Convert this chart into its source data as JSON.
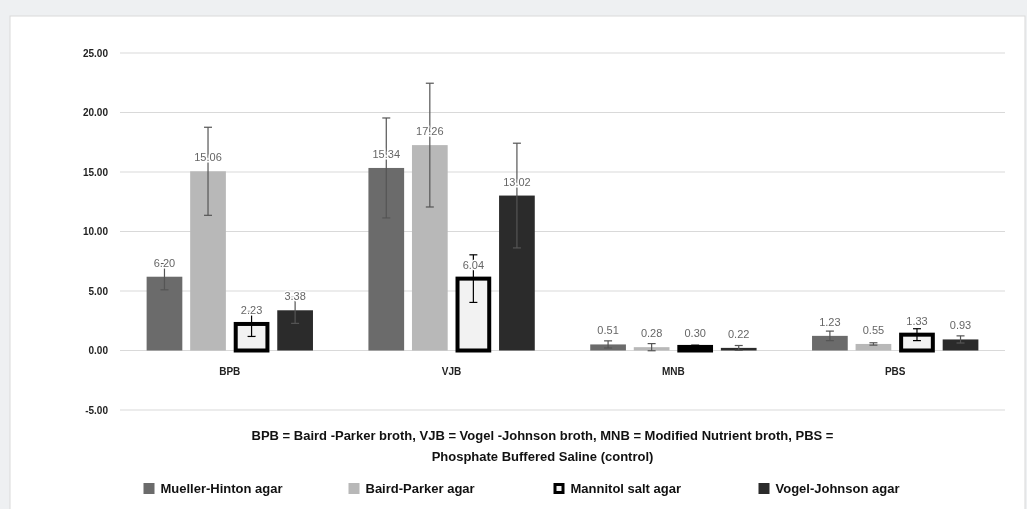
{
  "chart_data": {
    "type": "bar",
    "categories": [
      "BPB",
      "VJB",
      "MNB",
      "PBS"
    ],
    "series": [
      {
        "name": "Mueller-Hinton agar",
        "color": "#6b6b6b",
        "values": [
          6.2,
          15.34,
          0.51,
          1.23
        ],
        "errors": [
          1.1,
          4.2,
          0.3,
          0.4
        ],
        "value_labels": [
          "6.20",
          "15.34",
          "0.51",
          "1.23"
        ]
      },
      {
        "name": "Baird-Parker agar",
        "color": "#b8b8b8",
        "values": [
          15.06,
          17.26,
          0.28,
          0.55
        ],
        "errors": [
          3.7,
          5.2,
          0.3,
          0.1
        ],
        "value_labels": [
          "15.06",
          "17.26",
          "0.28",
          "0.55"
        ]
      },
      {
        "name": "Mannitol salt agar",
        "color": "#f2f2f2",
        "values": [
          2.23,
          6.04,
          0.3,
          1.33
        ],
        "errors": [
          1.05,
          2.0,
          0.15,
          0.5
        ],
        "value_labels": [
          "2.23",
          "6.04",
          "0.30",
          "1.33"
        ]
      },
      {
        "name": "Vogel-Johnson agar",
        "color": "#2b2b2b",
        "values": [
          3.38,
          13.02,
          0.22,
          0.93
        ],
        "errors": [
          1.1,
          4.4,
          0.2,
          0.3
        ],
        "value_labels": [
          "3.38",
          "13.02",
          "0.22",
          "0.93"
        ]
      }
    ],
    "ylim": [
      -5,
      25
    ],
    "yticks": [
      {
        "value": -5,
        "label": "-5.00"
      },
      {
        "value": 0,
        "label": "0.00"
      },
      {
        "value": 5,
        "label": "5.00"
      },
      {
        "value": 10,
        "label": "10.00"
      },
      {
        "value": 15,
        "label": "15.00"
      },
      {
        "value": 20,
        "label": "20.00"
      },
      {
        "value": 25,
        "label": "25.00"
      }
    ],
    "grid": "y",
    "legend": "bottom",
    "annotations": [
      "BPB = Baird -Parker broth, VJB = Vogel -Johnson broth, MNB = Modified Nutrient broth, PBS =",
      "Phosphate Buffered Saline (control)"
    ]
  }
}
